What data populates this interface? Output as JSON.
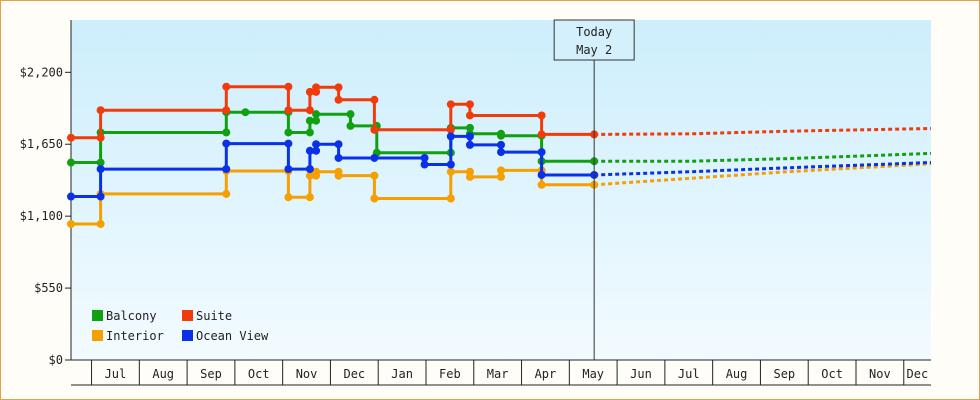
{
  "chart_data": {
    "type": "line",
    "y_ticks": [
      {
        "value": 0,
        "label": "$0"
      },
      {
        "value": 550,
        "label": "$550"
      },
      {
        "value": 1100,
        "label": "$1,100"
      },
      {
        "value": 1650,
        "label": "$1,650"
      },
      {
        "value": 2200,
        "label": "$2,200"
      }
    ],
    "ylim": [
      0,
      2600
    ],
    "x_month_labels": [
      "Jul",
      "Aug",
      "Sep",
      "Oct",
      "Nov",
      "Dec",
      "Jan",
      "Feb",
      "Mar",
      "Apr",
      "May",
      "Jun",
      "Jul",
      "Aug",
      "Sep",
      "Oct",
      "Nov",
      "Dec"
    ],
    "today_marker": {
      "line1": "Today",
      "line2": "May 2"
    },
    "legend_position": "bottom-left",
    "grid": false,
    "series": [
      {
        "name": "Balcony",
        "color": "#11a011",
        "points": [
          [
            0,
            1510
          ],
          [
            0.62,
            1510
          ],
          [
            0.62,
            1740
          ],
          [
            3.25,
            1740
          ],
          [
            3.25,
            1895
          ],
          [
            3.65,
            1895
          ],
          [
            3.65,
            1895
          ],
          [
            4.55,
            1895
          ],
          [
            4.55,
            1740
          ],
          [
            5.0,
            1740
          ],
          [
            5.0,
            1830
          ],
          [
            5.13,
            1830
          ],
          [
            5.13,
            1880
          ],
          [
            5.85,
            1880
          ],
          [
            5.85,
            1790
          ],
          [
            6.4,
            1790
          ],
          [
            6.4,
            1585
          ],
          [
            7.95,
            1585
          ],
          [
            7.95,
            1775
          ],
          [
            8.35,
            1775
          ],
          [
            8.35,
            1730
          ],
          [
            9.0,
            1730
          ],
          [
            9.0,
            1715
          ],
          [
            9.85,
            1715
          ],
          [
            9.85,
            1520
          ],
          [
            10.95,
            1520
          ]
        ],
        "forecast": [
          [
            10.95,
            1520
          ],
          [
            13,
            1520
          ],
          [
            15,
            1540
          ],
          [
            18,
            1580
          ]
        ]
      },
      {
        "name": "Suite",
        "color": "#f03c0a",
        "points": [
          [
            0,
            1700
          ],
          [
            0.62,
            1700
          ],
          [
            0.62,
            1910
          ],
          [
            3.25,
            1910
          ],
          [
            3.25,
            2090
          ],
          [
            4.55,
            2090
          ],
          [
            4.55,
            1910
          ],
          [
            5.0,
            1910
          ],
          [
            5.0,
            2050
          ],
          [
            5.13,
            2050
          ],
          [
            5.13,
            2085
          ],
          [
            5.6,
            2085
          ],
          [
            5.6,
            1990
          ],
          [
            6.35,
            1990
          ],
          [
            6.35,
            1760
          ],
          [
            7.95,
            1760
          ],
          [
            7.95,
            1955
          ],
          [
            8.35,
            1955
          ],
          [
            8.35,
            1870
          ],
          [
            9.85,
            1870
          ],
          [
            9.85,
            1725
          ],
          [
            10.95,
            1725
          ]
        ],
        "forecast": [
          [
            10.95,
            1725
          ],
          [
            13,
            1730
          ],
          [
            15,
            1750
          ],
          [
            18,
            1770
          ]
        ]
      },
      {
        "name": "Interior",
        "color": "#f5a000",
        "points": [
          [
            0,
            1040
          ],
          [
            0.62,
            1040
          ],
          [
            0.62,
            1270
          ],
          [
            3.25,
            1270
          ],
          [
            3.25,
            1445
          ],
          [
            4.55,
            1445
          ],
          [
            4.55,
            1245
          ],
          [
            5.0,
            1245
          ],
          [
            5.0,
            1410
          ],
          [
            5.13,
            1410
          ],
          [
            5.13,
            1440
          ],
          [
            5.6,
            1440
          ],
          [
            5.6,
            1410
          ],
          [
            6.35,
            1410
          ],
          [
            6.35,
            1235
          ],
          [
            7.95,
            1235
          ],
          [
            7.95,
            1440
          ],
          [
            8.35,
            1440
          ],
          [
            8.35,
            1400
          ],
          [
            9.0,
            1400
          ],
          [
            9.0,
            1450
          ],
          [
            9.85,
            1450
          ],
          [
            9.85,
            1340
          ],
          [
            10.95,
            1340
          ]
        ],
        "forecast": [
          [
            10.95,
            1340
          ],
          [
            13,
            1390
          ],
          [
            15,
            1440
          ],
          [
            18,
            1500
          ]
        ]
      },
      {
        "name": "Ocean View",
        "color": "#0a30e8",
        "points": [
          [
            0,
            1250
          ],
          [
            0.62,
            1250
          ],
          [
            0.62,
            1460
          ],
          [
            3.25,
            1460
          ],
          [
            3.25,
            1655
          ],
          [
            4.55,
            1655
          ],
          [
            4.55,
            1460
          ],
          [
            5.0,
            1460
          ],
          [
            5.0,
            1600
          ],
          [
            5.13,
            1600
          ],
          [
            5.13,
            1650
          ],
          [
            5.6,
            1650
          ],
          [
            5.6,
            1545
          ],
          [
            6.35,
            1545
          ],
          [
            6.35,
            1545
          ],
          [
            7.4,
            1545
          ],
          [
            7.4,
            1495
          ],
          [
            7.95,
            1495
          ],
          [
            7.95,
            1710
          ],
          [
            8.35,
            1710
          ],
          [
            8.35,
            1645
          ],
          [
            9.0,
            1645
          ],
          [
            9.0,
            1590
          ],
          [
            9.85,
            1590
          ],
          [
            9.85,
            1415
          ],
          [
            10.95,
            1415
          ]
        ],
        "forecast": [
          [
            10.95,
            1415
          ],
          [
            13,
            1440
          ],
          [
            15,
            1470
          ],
          [
            18,
            1510
          ]
        ]
      }
    ]
  }
}
